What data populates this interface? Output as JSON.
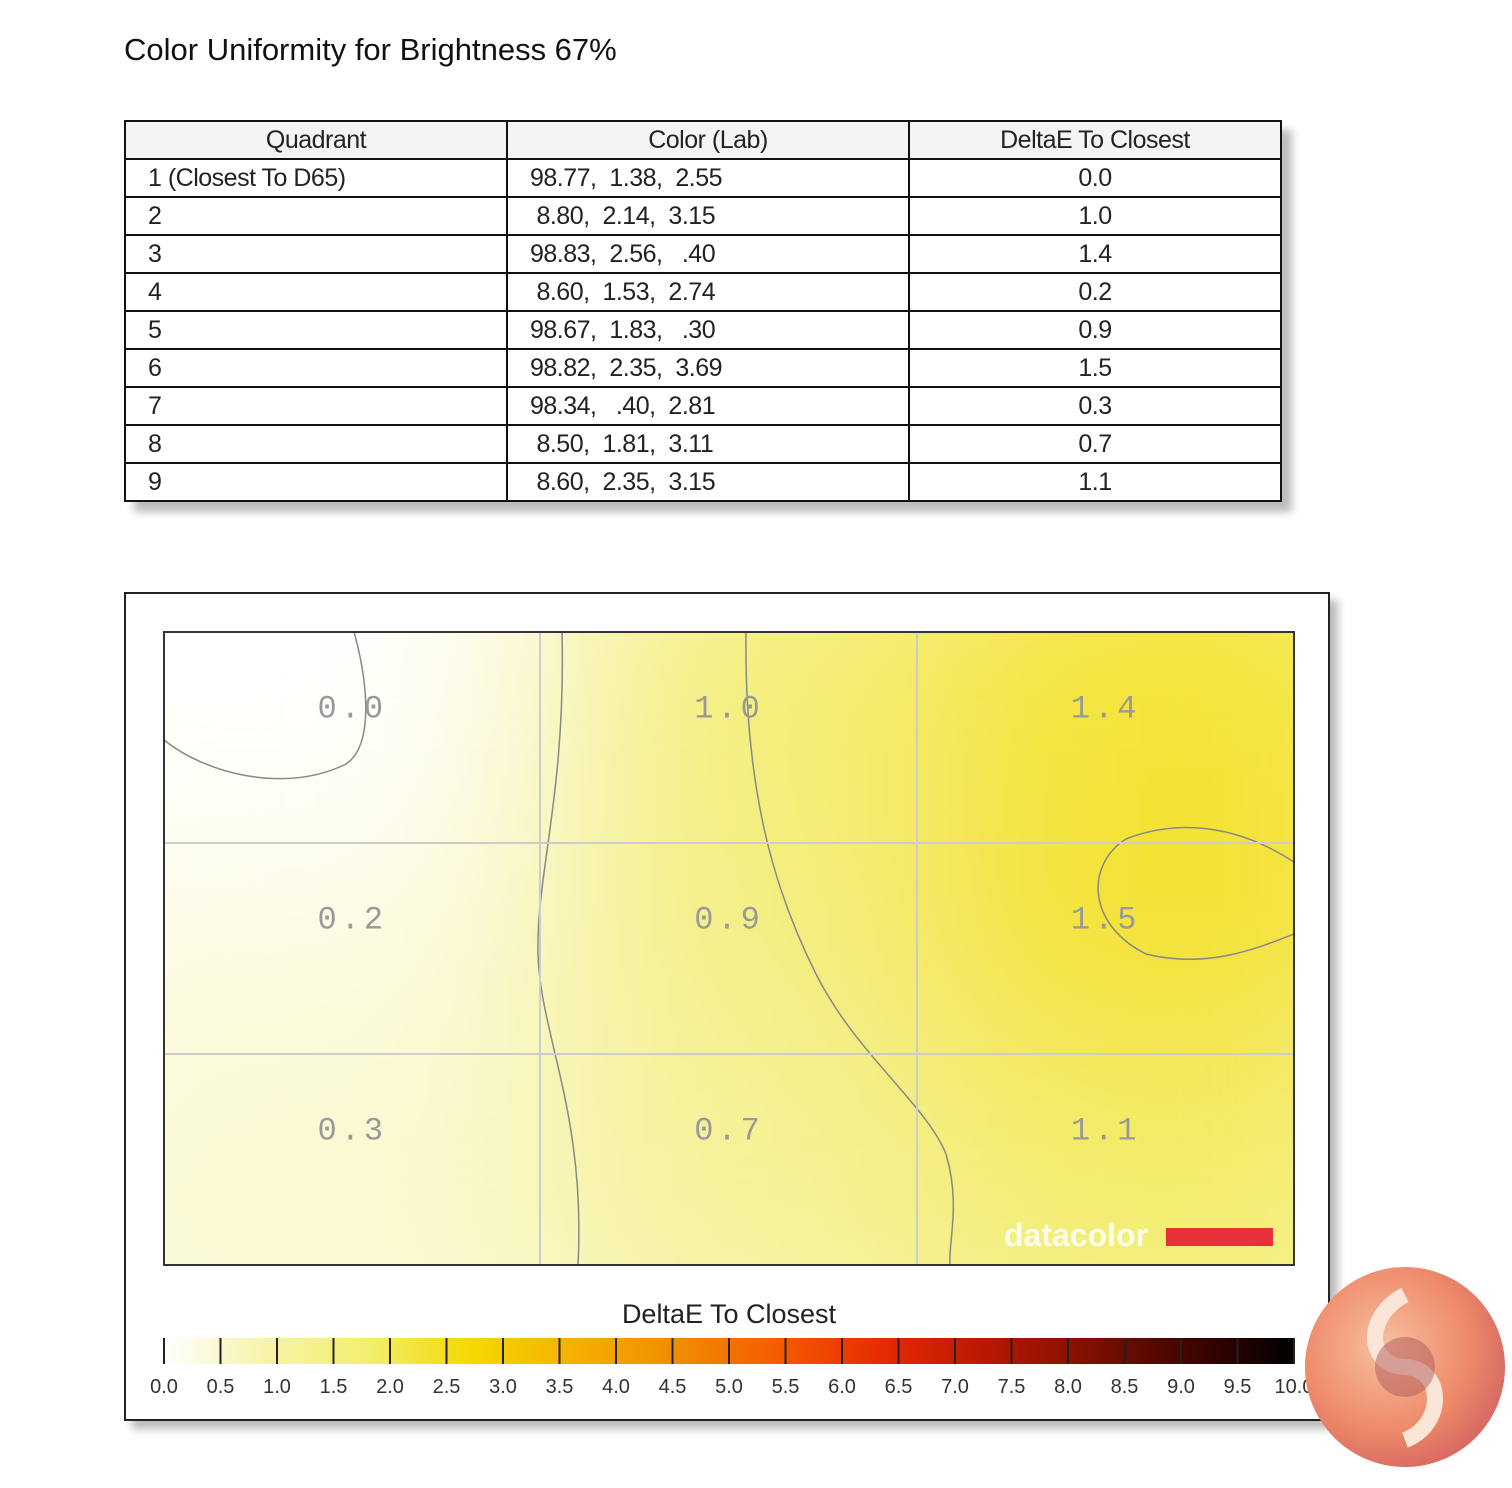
{
  "title": "Color Uniformity for Brightness 67%",
  "table": {
    "headers": [
      "Quadrant",
      "Color (Lab)",
      "DeltaE To Closest"
    ],
    "rows": [
      [
        "1 (Closest To D65)",
        "98.77,  1.38,  2.55",
        "0.0"
      ],
      [
        "2",
        " 8.80,  2.14,  3.15",
        "1.0"
      ],
      [
        "3",
        "98.83,  2.56,   .40",
        "1.4"
      ],
      [
        "4",
        " 8.60,  1.53,  2.74",
        "0.2"
      ],
      [
        "5",
        "98.67,  1.83,   .30",
        "0.9"
      ],
      [
        "6",
        "98.82,  2.35,  3.69",
        "1.5"
      ],
      [
        "7",
        "98.34,   .40,  2.81",
        "0.3"
      ],
      [
        "8",
        " 8.50,  1.81,  3.11",
        "0.7"
      ],
      [
        "9",
        " 8.60,  2.35,  3.15",
        "1.1"
      ]
    ]
  },
  "chart_data": {
    "type": "heatmap",
    "grid": [
      [
        "0.0",
        "1.0",
        "1.4"
      ],
      [
        "0.2",
        "0.9",
        "1.5"
      ],
      [
        "0.3",
        "0.7",
        "1.1"
      ]
    ],
    "values": [
      [
        0.0,
        1.0,
        1.4
      ],
      [
        0.2,
        0.9,
        1.5
      ],
      [
        0.3,
        0.7,
        1.1
      ]
    ],
    "colorbar_title": "DeltaE To Closest",
    "colorbar_range": [
      0,
      10
    ],
    "colorbar_ticks": [
      "0.0",
      "0.5",
      "1.0",
      "1.5",
      "2.0",
      "2.5",
      "3.0",
      "3.5",
      "4.0",
      "4.5",
      "5.0",
      "5.5",
      "6.0",
      "6.5",
      "7.0",
      "7.5",
      "8.0",
      "8.5",
      "9.0",
      "9.5",
      "10.0"
    ],
    "colormap": [
      "#ffffff",
      "#f6f3a8",
      "#f3ee6e",
      "#f5d800",
      "#f5b000",
      "#f08c00",
      "#f55a00",
      "#e62a00",
      "#b81800",
      "#801000",
      "#400400",
      "#000000"
    ],
    "gridlines": true,
    "watermark": "datacolor",
    "watermark_color": "#e8303a"
  }
}
